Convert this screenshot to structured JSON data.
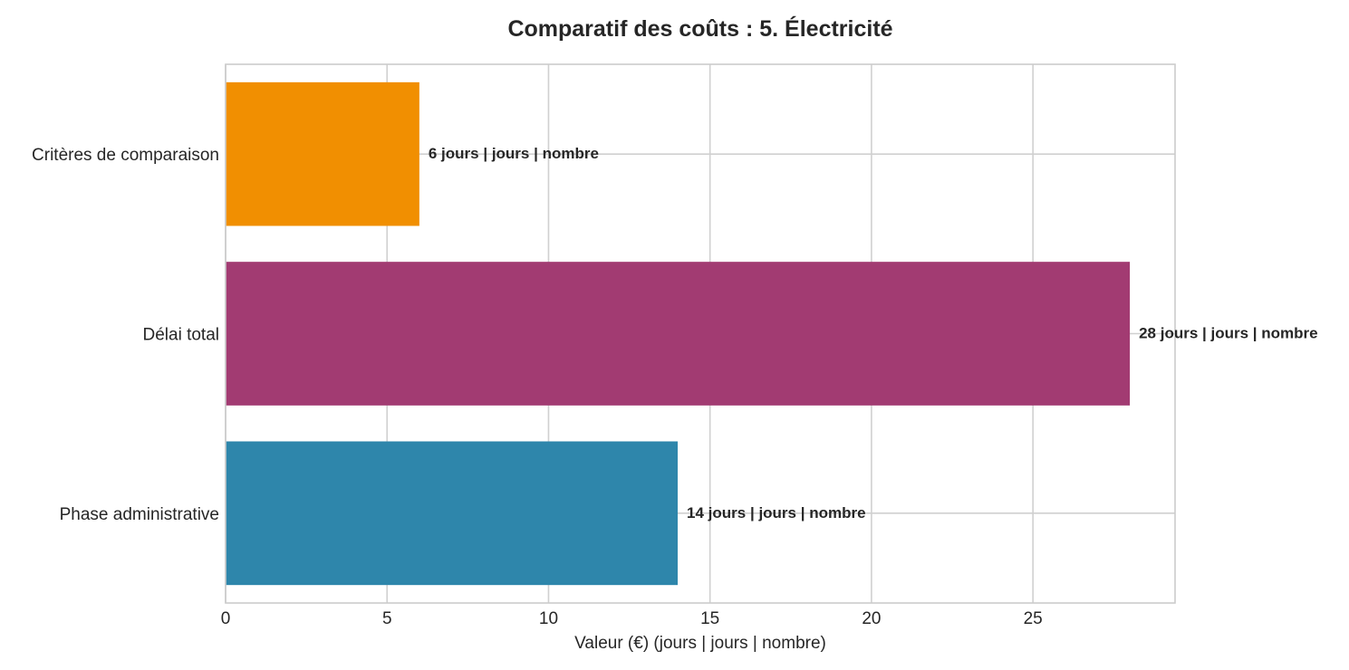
{
  "chart_data": {
    "type": "bar",
    "orientation": "horizontal",
    "title": "Comparatif des coûts : 5. Électricité",
    "xlabel": "Valeur (€) (jours | jours | nombre)",
    "ylabel": "",
    "xlim": [
      0,
      29.4
    ],
    "x_ticks": [
      0,
      5,
      10,
      15,
      20,
      25
    ],
    "grid": true,
    "categories": [
      "Phase administrative",
      "Délai total",
      "Critères de comparaison"
    ],
    "values": [
      14,
      28,
      6
    ],
    "data_labels": [
      "14 jours | jours | nombre",
      "28 jours | jours | nombre",
      "6 jours | jours | nombre"
    ],
    "colors": [
      "#2E86AB",
      "#A23B72",
      "#F18F01"
    ]
  }
}
